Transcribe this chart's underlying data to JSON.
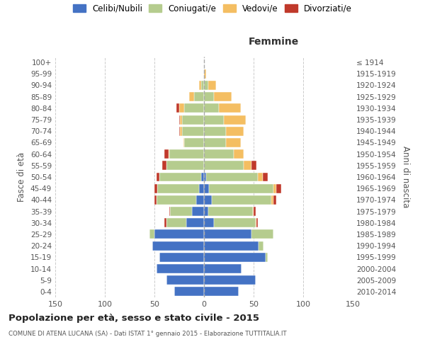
{
  "age_groups": [
    "0-4",
    "5-9",
    "10-14",
    "15-19",
    "20-24",
    "25-29",
    "30-34",
    "35-39",
    "40-44",
    "45-49",
    "50-54",
    "55-59",
    "60-64",
    "65-69",
    "70-74",
    "75-79",
    "80-84",
    "85-89",
    "90-94",
    "95-99",
    "100+"
  ],
  "birth_years": [
    "2010-2014",
    "2005-2009",
    "2000-2004",
    "1995-1999",
    "1990-1994",
    "1985-1989",
    "1980-1984",
    "1975-1979",
    "1970-1974",
    "1965-1969",
    "1960-1964",
    "1955-1959",
    "1950-1954",
    "1945-1949",
    "1940-1944",
    "1935-1939",
    "1930-1934",
    "1925-1929",
    "1920-1924",
    "1915-1919",
    "≤ 1914"
  ],
  "males": {
    "celibe": [
      30,
      38,
      48,
      45,
      52,
      50,
      18,
      12,
      8,
      5,
      3,
      0,
      0,
      0,
      0,
      0,
      0,
      0,
      0,
      0,
      0
    ],
    "coniugato": [
      0,
      0,
      0,
      0,
      0,
      5,
      20,
      22,
      40,
      42,
      42,
      38,
      35,
      20,
      22,
      22,
      20,
      10,
      3,
      0,
      0
    ],
    "vedovo": [
      0,
      0,
      0,
      0,
      0,
      0,
      0,
      0,
      0,
      0,
      0,
      0,
      1,
      1,
      2,
      2,
      5,
      5,
      2,
      0,
      0
    ],
    "divorziato": [
      0,
      0,
      0,
      0,
      0,
      0,
      2,
      1,
      2,
      3,
      3,
      4,
      4,
      0,
      1,
      1,
      3,
      0,
      0,
      0,
      0
    ]
  },
  "females": {
    "nubile": [
      35,
      52,
      38,
      62,
      55,
      48,
      10,
      4,
      8,
      5,
      2,
      0,
      0,
      0,
      0,
      0,
      0,
      0,
      0,
      0,
      0
    ],
    "coniugata": [
      0,
      0,
      0,
      2,
      5,
      22,
      42,
      45,
      60,
      65,
      52,
      40,
      30,
      22,
      22,
      20,
      15,
      10,
      4,
      0,
      0
    ],
    "vedova": [
      0,
      0,
      0,
      0,
      0,
      0,
      1,
      1,
      2,
      3,
      5,
      8,
      10,
      15,
      18,
      22,
      22,
      18,
      8,
      2,
      0
    ],
    "divorziata": [
      0,
      0,
      0,
      0,
      0,
      0,
      1,
      2,
      3,
      5,
      5,
      5,
      0,
      0,
      0,
      0,
      0,
      0,
      0,
      0,
      0
    ]
  },
  "colors": {
    "celibe_nubile": "#4472c4",
    "coniugato_a": "#b5cc8e",
    "vedovo_a": "#f4be62",
    "divorziato_a": "#c0392b"
  },
  "xlim": 150,
  "title": "Popolazione per età, sesso e stato civile - 2015",
  "subtitle": "COMUNE DI ATENA LUCANA (SA) - Dati ISTAT 1° gennaio 2015 - Elaborazione TUTTITALIA.IT",
  "ylabel_left": "Fasce di età",
  "ylabel_right": "Anni di nascita",
  "xlabel_femmine": "Femmine",
  "legend_labels": [
    "Celibi/Nubili",
    "Coniugati/e",
    "Vedovi/e",
    "Divorziati/e"
  ],
  "background_color": "#ffffff"
}
